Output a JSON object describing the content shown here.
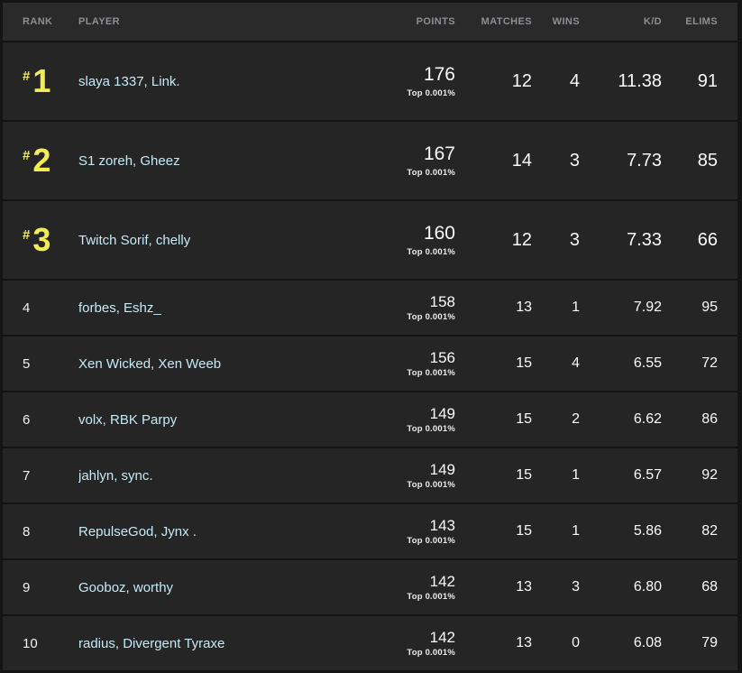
{
  "table": {
    "columns": [
      {
        "key": "rank",
        "label": "RANK"
      },
      {
        "key": "player",
        "label": "PLAYER"
      },
      {
        "key": "points",
        "label": "POINTS"
      },
      {
        "key": "matches",
        "label": "MATCHES"
      },
      {
        "key": "wins",
        "label": "WINS"
      },
      {
        "key": "kd",
        "label": "K/D"
      },
      {
        "key": "elims",
        "label": "ELIMS"
      }
    ],
    "top_percent_label": "Top 0.001%",
    "rows": [
      {
        "rank": "1",
        "featured": true,
        "player": "slaya 1337, Link.",
        "points": "176",
        "matches": "12",
        "wins": "4",
        "kd": "11.38",
        "elims": "91"
      },
      {
        "rank": "2",
        "featured": true,
        "player": "S1 zoreh, Gheez",
        "points": "167",
        "matches": "14",
        "wins": "3",
        "kd": "7.73",
        "elims": "85"
      },
      {
        "rank": "3",
        "featured": true,
        "player": "Twitch Sorif, chelly",
        "points": "160",
        "matches": "12",
        "wins": "3",
        "kd": "7.33",
        "elims": "66"
      },
      {
        "rank": "4",
        "featured": false,
        "player": "forbes, Eshz_",
        "points": "158",
        "matches": "13",
        "wins": "1",
        "kd": "7.92",
        "elims": "95"
      },
      {
        "rank": "5",
        "featured": false,
        "player": "Xen Wicked, Xen Weeb",
        "points": "156",
        "matches": "15",
        "wins": "4",
        "kd": "6.55",
        "elims": "72"
      },
      {
        "rank": "6",
        "featured": false,
        "player": "volx, RBK Parpy",
        "points": "149",
        "matches": "15",
        "wins": "2",
        "kd": "6.62",
        "elims": "86"
      },
      {
        "rank": "7",
        "featured": false,
        "player": "jahlyn, sync.",
        "points": "149",
        "matches": "15",
        "wins": "1",
        "kd": "6.57",
        "elims": "92"
      },
      {
        "rank": "8",
        "featured": false,
        "player": "RepulseGod, Jynx .",
        "points": "143",
        "matches": "15",
        "wins": "1",
        "kd": "5.86",
        "elims": "82"
      },
      {
        "rank": "9",
        "featured": false,
        "player": "Gooboz, worthy",
        "points": "142",
        "matches": "13",
        "wins": "3",
        "kd": "6.80",
        "elims": "68"
      },
      {
        "rank": "10",
        "featured": false,
        "player": "radius, Divergent Tyraxe",
        "points": "142",
        "matches": "13",
        "wins": "0",
        "kd": "6.08",
        "elims": "79"
      }
    ]
  },
  "colors": {
    "accent_yellow": "#f1ed52",
    "player_name_blue": "#c5eaf6",
    "row_background": "#252526",
    "header_background": "#2a2a2b",
    "header_text": "#8e8e93",
    "value_text": "#fcfcfc"
  }
}
